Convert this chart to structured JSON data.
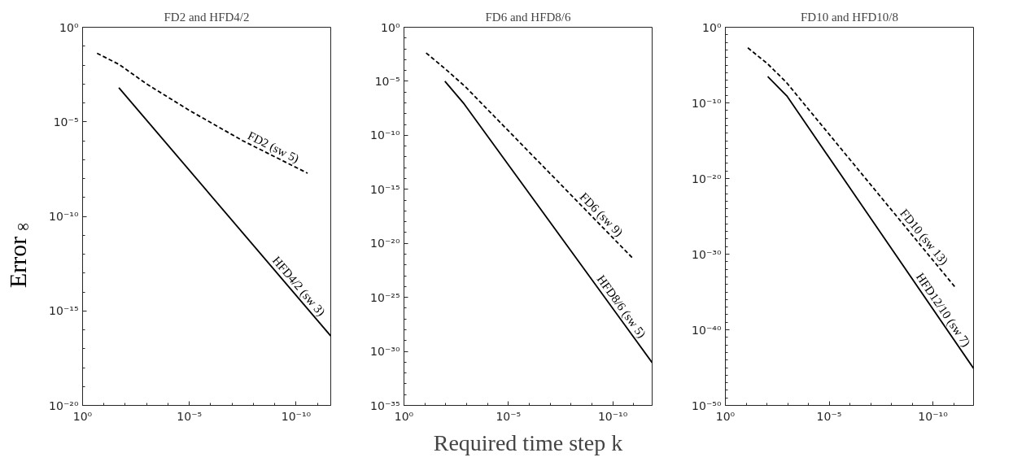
{
  "chart_data": [
    {
      "type": "line",
      "title": "FD2 and HFD4/2",
      "ylabel": "Error$_{∞}$",
      "log": "xy",
      "xlim": [
        1,
        2.4e-12
      ],
      "ylim": [
        1e-20,
        1
      ],
      "xticks": [
        {
          "value": 1,
          "label": "10⁰"
        },
        {
          "value": 1e-05,
          "label": "10⁻⁵"
        },
        {
          "value": 1e-10,
          "label": "10⁻¹⁰"
        }
      ],
      "yticks": [
        {
          "value": 1e-20,
          "label": "10⁻²⁰"
        },
        {
          "value": 1e-15,
          "label": "10⁻¹⁵"
        },
        {
          "value": 1e-10,
          "label": "10⁻¹⁰"
        },
        {
          "value": 1e-05,
          "label": "10⁻⁵"
        },
        {
          "value": 1,
          "label": "10⁰"
        }
      ],
      "series": [
        {
          "name": "FD2 (sw 5)",
          "color": "#000000",
          "line_style": "dashed",
          "x": [
            0.21,
            0.02,
            0.001,
            1e-05,
            3.2e-08,
            2.9e-11
          ],
          "values": [
            0.042,
            0.011,
            0.001,
            4e-05,
            1e-06,
            1.9e-08
          ]
        },
        {
          "name": "HFD4/2 (sw 3)",
          "color": "#000000",
          "line_style": "solid",
          "x": [
            0.02,
            2.4e-12
          ],
          "values": [
            0.00063,
            4.7e-17
          ]
        }
      ]
    },
    {
      "type": "line",
      "title": "FD6 and HFD8/6",
      "xlabel": "Required time step k",
      "log": "xy",
      "xlim": [
        1,
        1.3e-12
      ],
      "ylim": [
        1e-35,
        1
      ],
      "xticks": [
        {
          "value": 1,
          "label": "10⁰"
        },
        {
          "value": 1e-05,
          "label": "10⁻⁵"
        },
        {
          "value": 1e-10,
          "label": "10⁻¹⁰"
        }
      ],
      "yticks": [
        {
          "value": 1e-35,
          "label": "10⁻³⁵"
        },
        {
          "value": 1e-30,
          "label": "10⁻³⁰"
        },
        {
          "value": 1e-25,
          "label": "10⁻²⁵"
        },
        {
          "value": 1e-20,
          "label": "10⁻²⁰"
        },
        {
          "value": 1e-15,
          "label": "10⁻¹⁵"
        },
        {
          "value": 1e-10,
          "label": "10⁻¹⁰"
        },
        {
          "value": 1e-05,
          "label": "10⁻⁵"
        },
        {
          "value": 1,
          "label": "10⁰"
        }
      ],
      "series": [
        {
          "name": "FD6 (sw 9)",
          "color": "#000000",
          "line_style": "dashed",
          "x": [
            0.087,
            0.011,
            0.0012,
            1.1e-11
          ],
          "values": [
            0.0042,
            0.00015,
            3.4e-06,
            4.2e-22
          ]
        },
        {
          "name": "HFD8/6 (sw 5)",
          "color": "#000000",
          "line_style": "solid",
          "x": [
            0.011,
            0.0013,
            1.3e-12
          ],
          "values": [
            1e-05,
            7.8e-08,
            9.1e-32
          ]
        }
      ]
    },
    {
      "type": "line",
      "title": "FD10 and HFD10/8",
      "log": "xy",
      "xlim": [
        1,
        1.1e-12
      ],
      "ylim": [
        1e-50,
        1
      ],
      "xticks": [
        {
          "value": 1,
          "label": "10⁰"
        },
        {
          "value": 1e-05,
          "label": "10⁻⁵"
        },
        {
          "value": 1e-10,
          "label": "10⁻¹⁰"
        }
      ],
      "yticks": [
        {
          "value": 1e-50,
          "label": "10⁻⁵⁰"
        },
        {
          "value": 1e-40,
          "label": "10⁻⁴⁰"
        },
        {
          "value": 1e-30,
          "label": "10⁻³⁰"
        },
        {
          "value": 1e-20,
          "label": "10⁻²⁰"
        },
        {
          "value": 1e-10,
          "label": "10⁻¹⁰"
        },
        {
          "value": 1,
          "label": "10⁰"
        }
      ],
      "series": [
        {
          "name": "FD10 (sw 13)",
          "color": "#000000",
          "line_style": "dashed",
          "x": [
            0.083,
            0.0098,
            0.0012,
            8.3e-12
          ],
          "values": [
            0.0019,
            1.7e-05,
            5.9e-08,
            4e-35
          ]
        },
        {
          "name": "HFD12/10 (sw 7)",
          "color": "#000000",
          "line_style": "solid",
          "x": [
            0.0091,
            0.0011,
            1.1e-12
          ],
          "values": [
            3e-07,
            8.7e-10,
            7.9e-46
          ]
        }
      ]
    }
  ]
}
